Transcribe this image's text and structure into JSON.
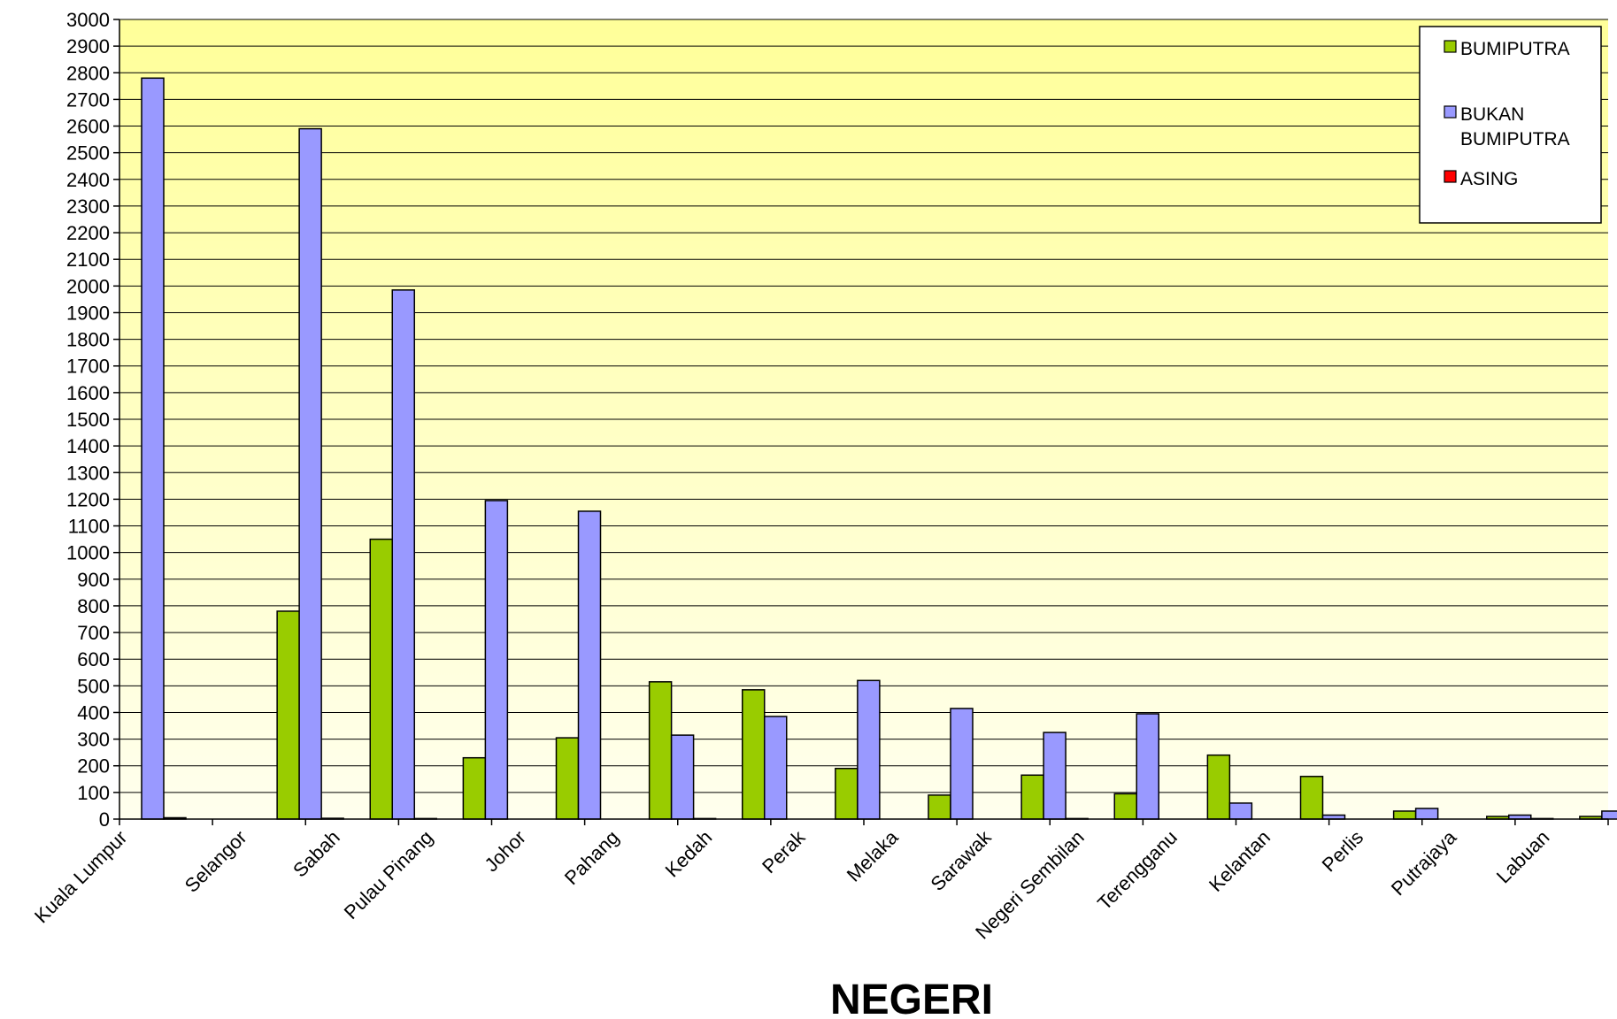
{
  "chart_data": {
    "type": "bar",
    "title": "",
    "xlabel": "NEGERI",
    "ylabel": "",
    "ylim": [
      0,
      3000
    ],
    "ytick_step": 100,
    "grid": true,
    "legend_position": "top-right",
    "background_gradient": [
      "#ffff99",
      "#ffffee"
    ],
    "categories": [
      "Kuala Lumpur",
      "Selangor",
      "Sabah",
      "Pulau Pinang",
      "Johor",
      "Pahang",
      "Kedah",
      "Perak",
      "Melaka",
      "Sarawak",
      "Negeri Sembilan",
      "Terengganu",
      "Kelantan",
      "Perlis",
      "Putrajaya",
      "Labuan"
    ],
    "series": [
      {
        "name": "BUMIPUTRA",
        "name_lines": [
          "BUMIPUTRA"
        ],
        "color": "#99cc00",
        "values": [
          0,
          780,
          1050,
          230,
          305,
          515,
          485,
          190,
          90,
          165,
          95,
          240,
          160,
          30,
          10,
          10
        ]
      },
      {
        "name": "BUKAN BUMIPUTRA",
        "name_lines": [
          "BUKAN",
          "BUMIPUTRA"
        ],
        "color": "#9999ff",
        "values": [
          2780,
          2590,
          1985,
          1195,
          1155,
          315,
          385,
          520,
          415,
          325,
          395,
          60,
          15,
          40,
          15,
          30
        ]
      },
      {
        "name": "ASING",
        "name_lines": [
          "ASING"
        ],
        "color": "#ff0000",
        "values": [
          5,
          3,
          2,
          0,
          0,
          2,
          0,
          0,
          0,
          2,
          0,
          0,
          0,
          0,
          2,
          0
        ]
      }
    ]
  }
}
